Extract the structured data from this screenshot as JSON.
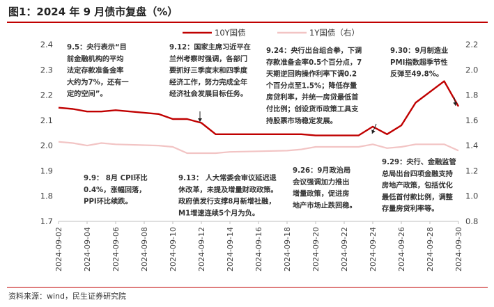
{
  "title": "图1：2024 年 9 月债市复盘（%）",
  "source": "资料来源：wind，民生证券研究院",
  "chart_data": {
    "type": "line",
    "x": [
      "2024-09-02",
      "2024-09-03",
      "2024-09-04",
      "2024-09-05",
      "2024-09-06",
      "2024-09-09",
      "2024-09-10",
      "2024-09-11",
      "2024-09-12",
      "2024-09-13",
      "2024-09-14",
      "2024-09-18",
      "2024-09-19",
      "2024-09-20",
      "2024-09-23",
      "2024-09-24",
      "2024-09-25",
      "2024-09-26",
      "2024-09-27",
      "2024-09-29",
      "2024-09-30"
    ],
    "xticks": [
      "2024-09-02",
      "2024-09-04",
      "2024-09-06",
      "2024-09-08",
      "2024-09-10",
      "2024-09-12",
      "2024-09-14",
      "2024-09-16",
      "2024-09-18",
      "2024-09-20",
      "2024-09-22",
      "2024-09-24",
      "2024-09-26",
      "2024-09-28",
      "2024-09-30"
    ],
    "series": [
      {
        "name": "10Y国债",
        "axis": "left",
        "color": "#c00000",
        "values": [
          2.15,
          2.145,
          2.135,
          2.135,
          2.14,
          2.125,
          2.105,
          2.105,
          2.09,
          2.045,
          2.045,
          2.045,
          2.045,
          2.04,
          2.04,
          2.075,
          2.045,
          2.08,
          2.17,
          2.255,
          2.155
        ]
      },
      {
        "name": "1Y国债（右）",
        "axis": "right",
        "color": "#f2c4c4",
        "values": [
          1.43,
          1.42,
          1.4,
          1.42,
          1.41,
          1.4,
          1.39,
          1.34,
          1.34,
          1.34,
          1.35,
          1.36,
          1.37,
          1.39,
          1.39,
          1.41,
          1.38,
          1.39,
          1.41,
          1.41,
          1.36
        ]
      }
    ],
    "ylim_left": [
      1.7,
      2.4
    ],
    "yticks_left": [
      "1.7",
      "1.8",
      "1.9",
      "2.0",
      "2.1",
      "2.2",
      "2.3",
      "2.4"
    ],
    "ylim_right": [
      0.8,
      2.2
    ],
    "yticks_right": [
      "0.8",
      "1.0",
      "1.2",
      "1.4",
      "1.6",
      "1.8",
      "2.0",
      "2.2"
    ],
    "legend": "top-right",
    "annotations": [
      {
        "id": "a1",
        "lines": [
          "9.5：央行表示“目",
          "前金融机构的平均",
          "法定存款准备金率",
          "大约为7%，还有一",
          "定的空间”。"
        ]
      },
      {
        "id": "a2",
        "lines": [
          "9.12：国家主席习近平在",
          "兰州考察时强调，各部门",
          "要抓好三季度末和四季度",
          "经济工作，努力完成全年",
          "经济社会发展目标任务。"
        ]
      },
      {
        "id": "a3",
        "lines": [
          "9.24：央行出台组合拳，下调",
          "存款准备金率0.5个百分点，7",
          "天期逆回购操作利率下调0.2",
          "个百分点至1.5%；降低存量",
          "房贷利率，并统一房贷最低首",
          "付比例；创设货币政策工具支",
          "持股票市场稳定发展。"
        ]
      },
      {
        "id": "a4",
        "lines": [
          "9.30：9月制造业",
          "PMI指数超季节性",
          "反弹至49.8%。"
        ]
      },
      {
        "id": "a5",
        "lines": [
          "9.9： 8月 CPI环比",
          "0.4%，涨幅回落，",
          "PPI环比续跌。"
        ]
      },
      {
        "id": "a6",
        "lines": [
          "9.13： 人大常委会审议延迟退",
          "休改革，未提及增量财政政策。",
          "政府债发行支撑8月新增社融，",
          "M1增速连续5个月为负。"
        ]
      },
      {
        "id": "a7",
        "lines": [
          "9.26：9月政治局",
          "会议强调加力推出",
          "增量政策，促进房",
          "地产市场止跌回稳。"
        ]
      },
      {
        "id": "a8",
        "lines": [
          "9.29：央行、金融监管",
          "总局出台四项金融支持",
          "房地产政策，包括优化",
          "最低首付款比例，调整",
          "存量房贷利率等。"
        ]
      }
    ]
  }
}
